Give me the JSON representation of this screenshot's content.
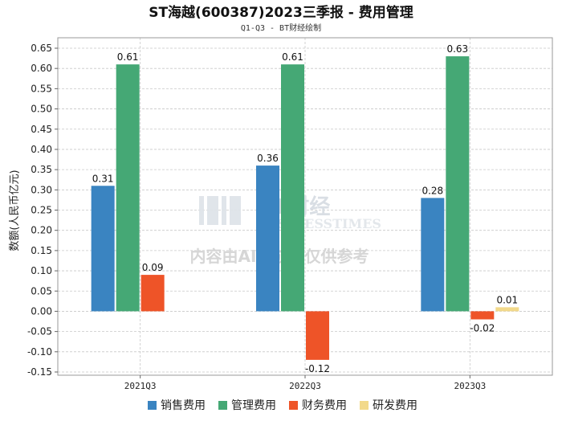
{
  "chart_data": {
    "type": "bar",
    "title": "ST海越(600387)2023三季报 - 费用管理",
    "subtitle": "Q1-Q3 - BT财经绘制",
    "ylabel": "数额(人民币亿元)",
    "xlabel": "",
    "categories": [
      "2021Q3",
      "2022Q3",
      "2023Q3"
    ],
    "ylim": [
      -0.15,
      0.65
    ],
    "yticks": [
      0.65,
      0.6,
      0.55,
      0.5,
      0.45,
      0.4,
      0.35,
      0.3,
      0.25,
      0.2,
      0.15,
      0.1,
      0.05,
      0.0,
      -0.05,
      -0.1,
      -0.15
    ],
    "ytick_labels": [
      "0.65",
      "0.60",
      "0.55",
      "0.50",
      "0.45",
      "0.40",
      "0.35",
      "0.30",
      "0.25",
      "0.20",
      "0.15",
      "0.10",
      "0.05",
      "0.00",
      "-0.05",
      "-0.10",
      "-0.15"
    ],
    "grid": true,
    "legend_position": "bottom",
    "series": [
      {
        "name": "销售费用",
        "color": "#3a84c1",
        "values": [
          0.31,
          0.36,
          0.28
        ],
        "labels": [
          "0.31",
          "0.36",
          "0.28"
        ]
      },
      {
        "name": "管理费用",
        "color": "#45a875",
        "values": [
          0.61,
          0.61,
          0.63
        ],
        "labels": [
          "0.61",
          "0.61",
          "0.63"
        ]
      },
      {
        "name": "财务费用",
        "color": "#ee5428",
        "values": [
          0.09,
          -0.12,
          -0.02
        ],
        "labels": [
          "0.09",
          "-0.12",
          "-0.02"
        ]
      },
      {
        "name": "研发费用",
        "color": "#f2d98a",
        "values": [
          null,
          null,
          0.01
        ],
        "labels": [
          "",
          "",
          "0.01"
        ]
      }
    ]
  },
  "watermark": {
    "logo_text": "BT财经",
    "logo_sub": "BUSINESSTIMES",
    "note": "内容由AI生成，仅供参考"
  }
}
